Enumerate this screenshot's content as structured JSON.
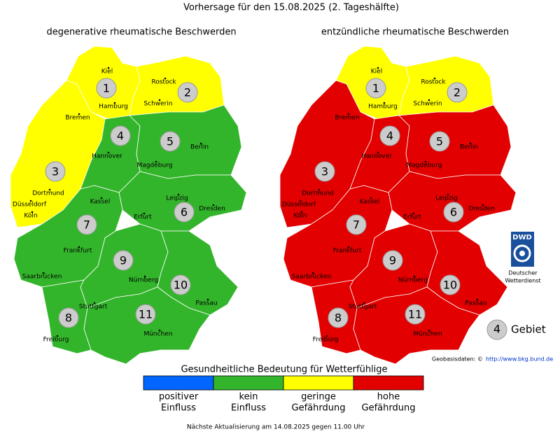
{
  "title": "Vorhersage für den 15.08.2025 (2. Tageshälfte)",
  "cities": [
    "Kiel",
    "Rostock",
    "Hamburg",
    "Schwerin",
    "Bremen",
    "Hannover",
    "Berlin",
    "Magdeburg",
    "Dortmund",
    "Düsseldorf",
    "Köln",
    "Kassel",
    "Leipzig",
    "Dresden",
    "Erfurt",
    "Frankfurt",
    "Saarbrücken",
    "Nürnberg",
    "Stuttgart",
    "Passau",
    "München",
    "Freiburg"
  ],
  "maps": [
    {
      "title": "degenerative rheumatische Beschwerden",
      "regions": [
        {
          "number": "1",
          "color": "#ffff00"
        },
        {
          "number": "2",
          "color": "#ffff00"
        },
        {
          "number": "3",
          "color": "#ffff00"
        },
        {
          "number": "4",
          "color": "#33b52b"
        },
        {
          "number": "5",
          "color": "#33b52b"
        },
        {
          "number": "6",
          "color": "#33b52b"
        },
        {
          "number": "7",
          "color": "#33b52b"
        },
        {
          "number": "8",
          "color": "#33b52b"
        },
        {
          "number": "9",
          "color": "#33b52b"
        },
        {
          "number": "10",
          "color": "#33b52b"
        },
        {
          "number": "11",
          "color": "#33b52b"
        }
      ]
    },
    {
      "title": "entzündliche rheumatische Beschwerden",
      "regions": [
        {
          "number": "1",
          "color": "#ffff00"
        },
        {
          "number": "2",
          "color": "#ffff00"
        },
        {
          "number": "3",
          "color": "#e20000"
        },
        {
          "number": "4",
          "color": "#e20000"
        },
        {
          "number": "5",
          "color": "#e20000"
        },
        {
          "number": "6",
          "color": "#e20000"
        },
        {
          "number": "7",
          "color": "#e20000"
        },
        {
          "number": "8",
          "color": "#e20000"
        },
        {
          "number": "9",
          "color": "#e20000"
        },
        {
          "number": "10",
          "color": "#e20000"
        },
        {
          "number": "11",
          "color": "#e20000"
        }
      ]
    }
  ],
  "legend": {
    "title": "Gesundheitliche Bedeutung für Wetterfühlige",
    "items": [
      {
        "label": [
          "positiver",
          "Einfluss"
        ],
        "color": "#0066ff"
      },
      {
        "label": [
          "kein",
          "Einfluss"
        ],
        "color": "#33b52b"
      },
      {
        "label": [
          "geringe",
          "Gefährdung"
        ],
        "color": "#ffff00"
      },
      {
        "label": [
          "hohe",
          "Gefährdung"
        ],
        "color": "#e20000"
      }
    ]
  },
  "logo": {
    "abbr": "DWD",
    "name": [
      "Deutscher",
      "Wetterdienst"
    ]
  },
  "key": {
    "number": "4",
    "label": "Gebiet"
  },
  "source": {
    "label": "Geobasisdaten: ©",
    "url": "http://www.bkg.bund.de"
  },
  "footer": "Nächste Aktualisierung am 14.08.2025 gegen 11.00 Uhr"
}
